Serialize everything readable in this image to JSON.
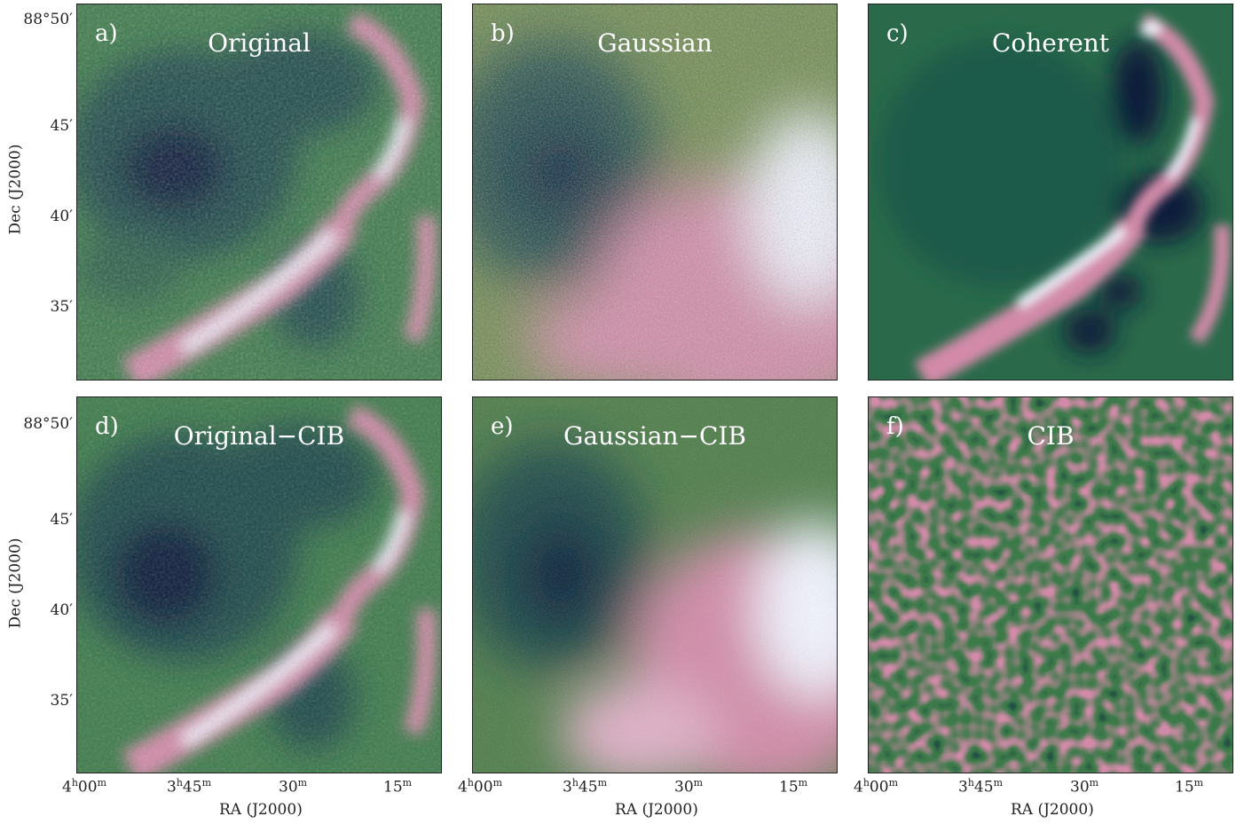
{
  "panels": [
    {
      "tag": "a)",
      "title": "Original",
      "cmap": "orig",
      "bright": 1.0
    },
    {
      "tag": "b)",
      "title": "Gaussian",
      "cmap": "gauss",
      "bright": 1.0
    },
    {
      "tag": "c)",
      "title": "Coherent",
      "cmap": "coh",
      "bright": 1.0
    },
    {
      "tag": "d)",
      "title": "Original−CIB",
      "cmap": "origcib",
      "bright": 1.0
    },
    {
      "tag": "e)",
      "title": "Gaussian−CIB",
      "cmap": "gausscib",
      "bright": 1.0
    },
    {
      "tag": "f)",
      "title": "CIB",
      "cmap": "cib",
      "bright": 1.0
    }
  ],
  "axes": {
    "ylabel": "Dec (J2000)",
    "xlabel": "RA (J2000)",
    "dec_ticks": [
      "88°50′",
      "45′",
      "40′",
      "35′"
    ],
    "ra_ticks_a": "4",
    "ra_ticks_a_sup": "h",
    "ra_ticks_a_min": "00",
    "ra_ticks_b": "3",
    "ra_ticks_b_sup": "h",
    "ra_ticks_b_min": "45",
    "ra_ticks_c": "30",
    "ra_ticks_d": "15",
    "min_sup": "m"
  },
  "colormap": {
    "dark": "#0d1f3a",
    "deep": "#1e4a4a",
    "green": "#3d7a4a",
    "olive": "#6f8a4e",
    "pink": "#d28aa8",
    "white": "#f2f4ff"
  }
}
